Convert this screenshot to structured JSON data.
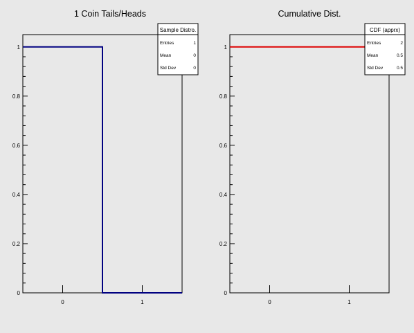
{
  "chart_data": [
    {
      "type": "step",
      "title": "1 Coin Tails/Heads",
      "categories": [
        "0",
        "1"
      ],
      "bin_edges": [
        -0.5,
        0.5,
        1.5
      ],
      "values": [
        1,
        0
      ],
      "line_color": "#000080",
      "xlim": [
        -0.5,
        1.5
      ],
      "ylim": [
        0,
        1.05
      ],
      "y_ticks": [
        "0",
        "0.2",
        "0.4",
        "0.6",
        "0.8",
        "1"
      ],
      "x_ticks": [
        "0",
        "1"
      ],
      "grid": false,
      "stats_box": {
        "title": "Sample Distro.",
        "placement": "top-right",
        "rows": [
          {
            "label": "Entries",
            "value": "1"
          },
          {
            "label": "Mean",
            "value": "0"
          },
          {
            "label": "Std Dev",
            "value": "0"
          }
        ]
      }
    },
    {
      "type": "step",
      "title": "Cumulative Dist.",
      "categories": [
        "0",
        "1"
      ],
      "bin_edges": [
        -0.5,
        0.5,
        1.5
      ],
      "values": [
        1,
        1
      ],
      "line_color": "#dd0000",
      "xlim": [
        -0.5,
        1.5
      ],
      "ylim": [
        0,
        1.05
      ],
      "y_ticks": [
        "0",
        "0.2",
        "0.4",
        "0.6",
        "0.8",
        "1"
      ],
      "x_ticks": [
        "0",
        "1"
      ],
      "grid": false,
      "stats_box": {
        "title": "CDF (apprx)",
        "placement": "top-right",
        "rows": [
          {
            "label": "Entries",
            "value": "2"
          },
          {
            "label": "Mean",
            "value": "0.5"
          },
          {
            "label": "Std Dev",
            "value": "0.5"
          }
        ]
      }
    }
  ]
}
